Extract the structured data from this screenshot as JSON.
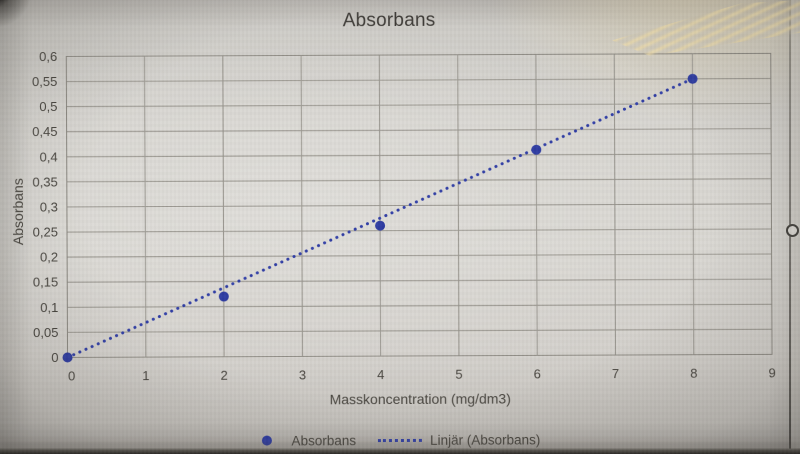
{
  "chart_data": {
    "type": "scatter",
    "title": "Absorbans",
    "xlabel": "Masskoncentration (mg/dm3)",
    "ylabel": "Absorbans",
    "x": [
      0,
      2,
      4,
      6,
      8
    ],
    "y": [
      0,
      0.12,
      0.26,
      0.41,
      0.55
    ],
    "xlim": [
      0,
      9
    ],
    "ylim": [
      0,
      0.6
    ],
    "x_ticks": [
      "0",
      "1",
      "2",
      "3",
      "4",
      "5",
      "6",
      "7",
      "8",
      "9"
    ],
    "y_ticks": [
      "0",
      "0,05",
      "0,1",
      "0,15",
      "0,2",
      "0,25",
      "0,3",
      "0,35",
      "0,4",
      "0,45",
      "0,5",
      "0,55",
      "0,6"
    ],
    "grid": true,
    "legend_position": "bottom",
    "legend": [
      {
        "label": "Absorbans",
        "marker": "dot"
      },
      {
        "label": "Linjär (Absorbans)",
        "marker": "dotted-line"
      }
    ],
    "trendline": {
      "type": "linear",
      "style": "dotted",
      "x_start": 0,
      "y_start": 0,
      "x_end": 8,
      "y_end": 0.55
    },
    "colors": {
      "series": "#2a38a0",
      "trendline": "#2c3aa4",
      "gridline": "#97948d",
      "plot_border": "#8d8a83",
      "text": "#44413b"
    }
  }
}
